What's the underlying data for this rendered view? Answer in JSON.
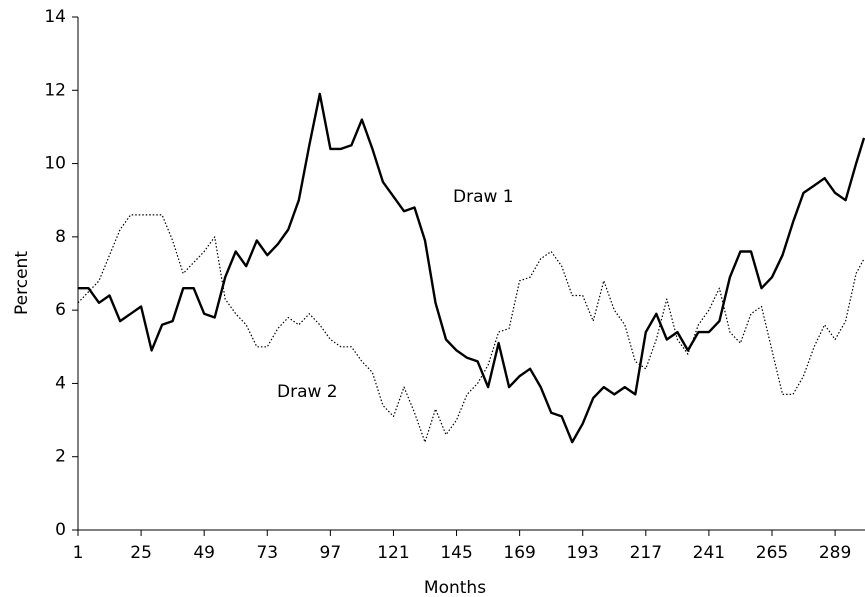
{
  "chart_data": {
    "type": "line",
    "x_label": "Months",
    "y_label": "Percent",
    "x": [
      1,
      5,
      9,
      13,
      17,
      21,
      25,
      29,
      33,
      37,
      41,
      45,
      49,
      53,
      57,
      61,
      65,
      69,
      73,
      77,
      81,
      85,
      89,
      93,
      97,
      101,
      105,
      109,
      113,
      117,
      121,
      125,
      129,
      133,
      137,
      141,
      145,
      149,
      153,
      157,
      161,
      165,
      169,
      173,
      177,
      181,
      185,
      189,
      193,
      197,
      201,
      205,
      209,
      213,
      217,
      221,
      225,
      229,
      233,
      237,
      241,
      245,
      249,
      253,
      257,
      261,
      265,
      269,
      273,
      277,
      281,
      285,
      289,
      293,
      297,
      300
    ],
    "series": [
      {
        "name": "Draw 1",
        "color": "#000000",
        "style": "solid",
        "values": [
          6.6,
          6.6,
          6.2,
          6.4,
          5.7,
          5.9,
          6.1,
          4.9,
          5.6,
          5.7,
          6.6,
          6.6,
          5.9,
          5.8,
          6.9,
          7.6,
          7.2,
          7.9,
          7.5,
          7.8,
          8.2,
          9.0,
          10.5,
          11.9,
          10.4,
          10.4,
          10.5,
          11.2,
          10.4,
          9.5,
          9.1,
          8.7,
          8.8,
          7.9,
          6.2,
          5.2,
          4.9,
          4.7,
          4.6,
          3.9,
          5.1,
          3.9,
          4.2,
          4.4,
          3.9,
          3.2,
          3.1,
          2.4,
          2.9,
          3.6,
          3.9,
          3.7,
          3.9,
          3.7,
          5.4,
          5.9,
          5.2,
          5.4,
          4.9,
          5.4,
          5.4,
          5.7,
          6.9,
          7.6,
          7.6,
          6.6,
          6.9,
          7.5,
          8.4,
          9.2,
          9.4,
          9.6,
          9.2,
          9.0,
          10.0,
          10.7
        ]
      },
      {
        "name": "Draw 2",
        "color": "#000000",
        "style": "dotted",
        "values": [
          6.2,
          6.5,
          6.8,
          7.5,
          8.2,
          8.6,
          8.6,
          8.6,
          8.6,
          7.9,
          7.0,
          7.3,
          7.6,
          8.0,
          6.3,
          5.9,
          5.6,
          5.0,
          5.0,
          5.5,
          5.8,
          5.6,
          5.9,
          5.6,
          5.2,
          5.0,
          5.0,
          4.6,
          4.3,
          3.4,
          3.1,
          3.9,
          3.2,
          2.4,
          3.3,
          2.6,
          3.0,
          3.7,
          4.0,
          4.5,
          5.4,
          5.5,
          6.8,
          6.9,
          7.4,
          7.6,
          7.2,
          6.4,
          6.4,
          5.7,
          6.8,
          6.0,
          5.6,
          4.6,
          4.4,
          5.2,
          6.3,
          5.2,
          4.8,
          5.6,
          6.0,
          6.6,
          5.4,
          5.1,
          5.9,
          6.1,
          4.9,
          3.7,
          3.7,
          4.2,
          5.0,
          5.6,
          5.2,
          5.7,
          7.0,
          7.4
        ]
      }
    ],
    "xlim": [
      1,
      300
    ],
    "xticks": [
      1,
      25,
      49,
      73,
      97,
      121,
      145,
      169,
      193,
      217,
      241,
      265,
      289
    ],
    "ylim": [
      0,
      14
    ],
    "yticks": [
      0,
      2,
      4,
      6,
      8,
      10,
      12,
      14
    ],
    "grid": false
  }
}
